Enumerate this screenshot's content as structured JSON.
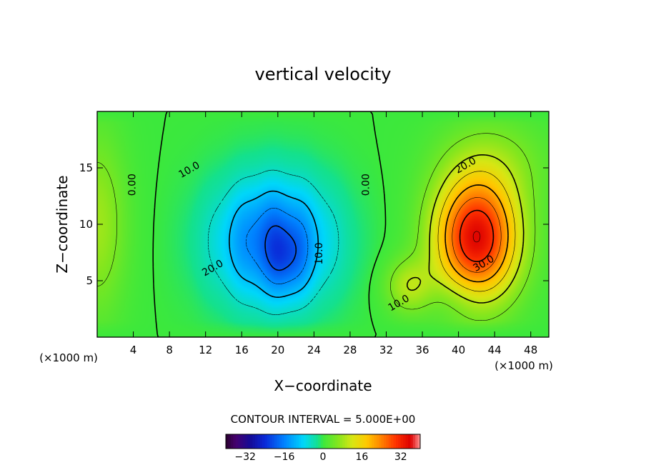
{
  "chart_data": {
    "type": "heatmap",
    "title": "vertical velocity",
    "xlabel": "X−coordinate",
    "ylabel": "Z−coordinate",
    "x_unit": "(×1000 m)",
    "x_unit_right": "(×1000 m)",
    "xlim": [
      0,
      50
    ],
    "ylim": [
      0,
      20
    ],
    "x_ticks": [
      4,
      8,
      12,
      16,
      20,
      24,
      28,
      32,
      36,
      40,
      44,
      48
    ],
    "y_ticks": [
      5,
      10,
      15
    ],
    "contour_interval_text": "CONTOUR INTERVAL = 5.000E+00",
    "contour_interval": 5,
    "colorbar": {
      "min": -40,
      "max": 40,
      "ticks": [
        -32,
        -16,
        0,
        16,
        32
      ],
      "tick_labels": [
        "−32",
        "−16",
        "0",
        "16",
        "32"
      ]
    },
    "features": [
      {
        "kind": "downdraft",
        "center_x": 20,
        "center_z": 8,
        "min_value": -25
      },
      {
        "kind": "updraft",
        "center_x": 42,
        "center_z": 8.5,
        "max_value": 35
      },
      {
        "kind": "updraft",
        "center_x": 0,
        "center_z": 10,
        "max_value": 8
      }
    ],
    "contour_labels": [
      {
        "text": "0.00",
        "x": 3.9,
        "z": 13.5
      },
      {
        "text": "10.0",
        "x": 10.2,
        "z": 14.8
      },
      {
        "text": "20.0",
        "x": 12.8,
        "z": 6.1
      },
      {
        "text": "10.0",
        "x": 24.6,
        "z": 7.4
      },
      {
        "text": "0.00",
        "x": 29.8,
        "z": 13.5
      },
      {
        "text": "20.0",
        "x": 40.8,
        "z": 15.2
      },
      {
        "text": "30.0",
        "x": 42.8,
        "z": 6.5
      },
      {
        "text": "10.0",
        "x": 33.4,
        "z": 3.0
      }
    ]
  }
}
